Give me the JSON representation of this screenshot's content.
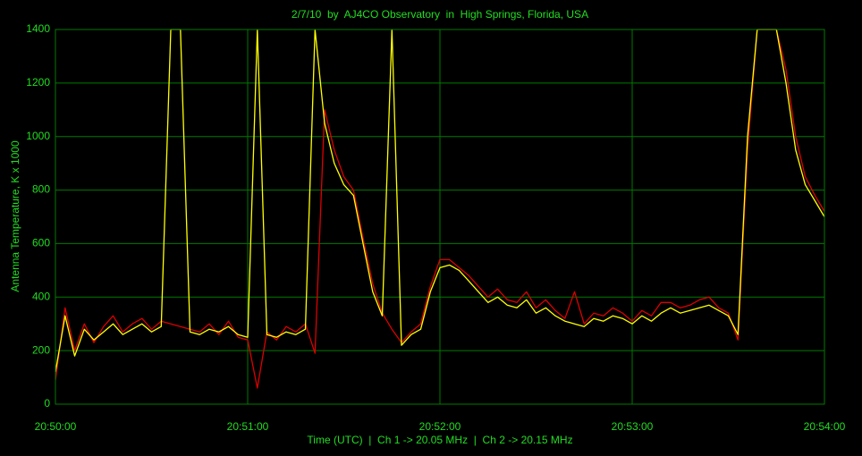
{
  "chart_data": {
    "type": "line",
    "title": "2/7/10  by  AJ4CO Observatory  in  High Springs, Florida, USA",
    "x_label": "Time (UTC)  |  Ch 1 -> 20.05 MHz  |  Ch 2 -> 20.15 MHz",
    "y_label": "Antenna Temperature, K x 1000",
    "x": [
      "20:50:00",
      "20:50:03",
      "20:50:06",
      "20:50:09",
      "20:50:12",
      "20:50:15",
      "20:50:18",
      "20:50:21",
      "20:50:24",
      "20:50:27",
      "20:50:30",
      "20:50:33",
      "20:50:36",
      "20:50:39",
      "20:50:42",
      "20:50:45",
      "20:50:48",
      "20:50:51",
      "20:50:54",
      "20:50:57",
      "20:51:00",
      "20:51:03",
      "20:51:06",
      "20:51:09",
      "20:51:12",
      "20:51:15",
      "20:51:18",
      "20:51:21",
      "20:51:24",
      "20:51:27",
      "20:51:30",
      "20:51:33",
      "20:51:36",
      "20:51:39",
      "20:51:42",
      "20:51:45",
      "20:51:48",
      "20:51:51",
      "20:51:54",
      "20:51:57",
      "20:52:00",
      "20:52:03",
      "20:52:06",
      "20:52:09",
      "20:52:12",
      "20:52:15",
      "20:52:18",
      "20:52:21",
      "20:52:24",
      "20:52:27",
      "20:52:30",
      "20:52:33",
      "20:52:36",
      "20:52:39",
      "20:52:42",
      "20:52:45",
      "20:52:48",
      "20:52:51",
      "20:52:54",
      "20:52:57",
      "20:53:00",
      "20:53:03",
      "20:53:06",
      "20:53:09",
      "20:53:12",
      "20:53:15",
      "20:53:18",
      "20:53:21",
      "20:53:24",
      "20:53:27",
      "20:53:30",
      "20:53:33",
      "20:53:36",
      "20:53:39",
      "20:53:42",
      "20:53:45",
      "20:53:48",
      "20:53:51",
      "20:53:54",
      "20:53:57",
      "20:54:00"
    ],
    "series": [
      {
        "color": "#dd0000",
        "values": [
          90,
          360,
          200,
          300,
          230,
          290,
          330,
          270,
          300,
          320,
          280,
          310,
          300,
          290,
          280,
          270,
          300,
          260,
          310,
          250,
          240,
          60,
          270,
          240,
          290,
          270,
          300,
          190,
          1100,
          950,
          850,
          800,
          620,
          450,
          340,
          280,
          230,
          270,
          300,
          440,
          540,
          540,
          510,
          480,
          440,
          400,
          430,
          390,
          380,
          420,
          360,
          390,
          350,
          320,
          420,
          300,
          340,
          330,
          360,
          340,
          310,
          350,
          330,
          380,
          380,
          360,
          370,
          390,
          400,
          360,
          340,
          240,
          950,
          1400,
          1400,
          1400,
          1250,
          1000,
          850,
          780,
          720
        ]
      },
      {
        "color": "#ffff00",
        "values": [
          120,
          330,
          180,
          280,
          240,
          270,
          300,
          260,
          280,
          300,
          270,
          290,
          1400,
          1400,
          270,
          260,
          280,
          270,
          290,
          260,
          250,
          1400,
          260,
          250,
          270,
          260,
          280,
          1400,
          1050,
          900,
          820,
          780,
          600,
          420,
          330,
          1400,
          220,
          260,
          280,
          420,
          510,
          520,
          500,
          460,
          420,
          380,
          400,
          370,
          360,
          390,
          340,
          360,
          330,
          310,
          300,
          290,
          320,
          310,
          330,
          320,
          300,
          330,
          310,
          340,
          360,
          340,
          350,
          360,
          370,
          350,
          330,
          260,
          1000,
          1400,
          1400,
          1400,
          1200,
          950,
          820,
          760,
          700
        ]
      }
    ],
    "xlim": [
      "20:50:00",
      "20:54:00"
    ],
    "xticks": [
      "20:50:00",
      "20:51:00",
      "20:52:00",
      "20:53:00",
      "20:54:00"
    ],
    "ylim": [
      0,
      1400
    ],
    "yticks": [
      0,
      200,
      400,
      600,
      800,
      1000,
      1200,
      1400
    ],
    "grid": true,
    "grid_color": "#007a00"
  }
}
